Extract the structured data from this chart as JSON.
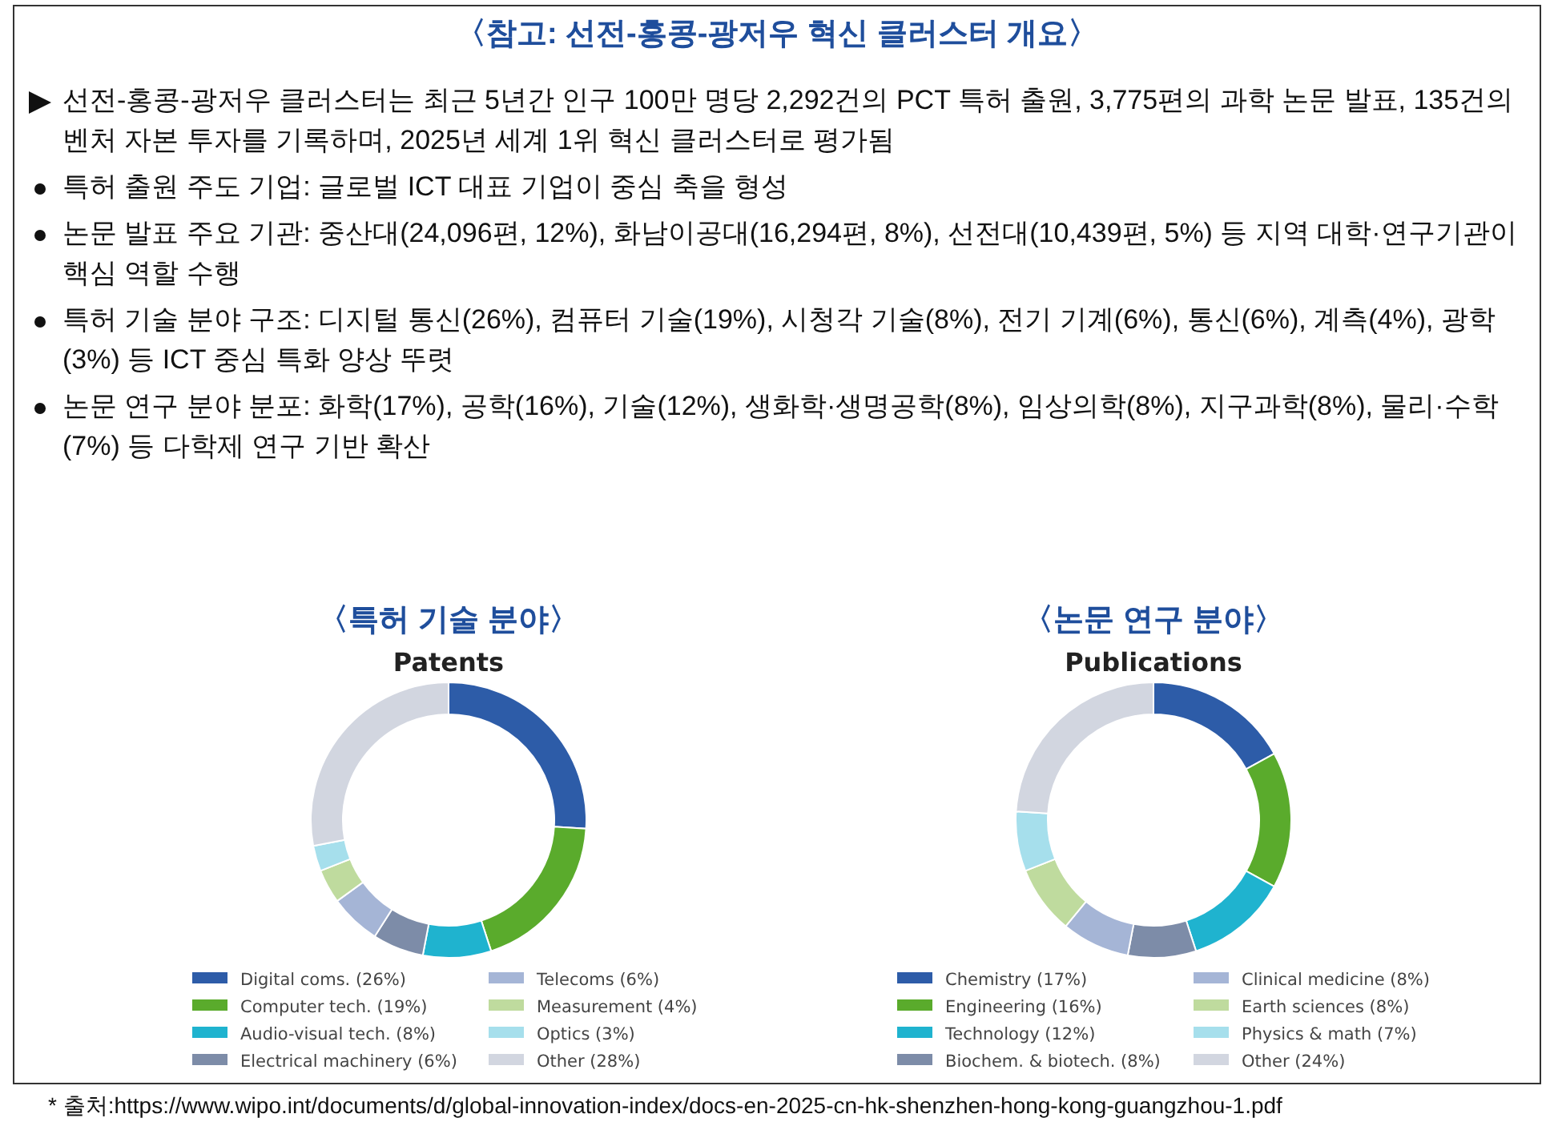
{
  "chart_data": [
    {
      "type": "other",
      "title": "〈참고: 선전-홍콩-광저우 혁신 클러스터 개요〉",
      "annotations": [
        "선전-홍콩-광저우 클러스터는 최근 5년간 인구 100만 명당 2,292건의 PCT 특허 출원, 3,775편의 과학 논문 발표, 135건의 벤처 자본 투자를 기록하며, 2025년 세계 1위 혁신 클러스터로 평가됨",
        "특허 출원 주도 기업: 글로벌 ICT 대표 기업이 중심 축을 형성",
        "논문 발표 주요 기관: 중산대(24,096편, 12%), 화남이공대(16,294편, 8%), 선전대(10,439편, 5%) 등 지역 대학·연구기관이 핵심 역할 수행",
        "특허 기술 분야 구조: 디지털 통신(26%), 컴퓨터 기술(19%), 시청각 기술(8%), 전기 기계(6%), 통신(6%), 계측(4%), 광학(3%) 등 ICT 중심 특화 양상 뚜렷",
        "논문 연구 분야 분포: 화학(17%), 공학(16%), 기술(12%), 생화학·생명공학(8%), 임상의학(8%), 지구과학(8%), 물리·수학(7%) 등 다학제 연구 기반 확산",
        "* 출처:https://www.wipo.int/documents/d/global-innovation-index/docs-en-2025-cn-hk-shenzhen-hong-kong-guangzhou-1.pdf"
      ]
    },
    {
      "type": "donut",
      "title": "〈특허 기술 분야〉",
      "subtitle": "Patents",
      "legend": "bottom",
      "categories": [
        "Digital coms. (26%)",
        "Computer tech. (19%)",
        "Audio-visual tech. (8%)",
        "Electrical machinery (6%)",
        "Telecoms (6%)",
        "Measurement (4%)",
        "Optics (3%)",
        "Other (28%)"
      ],
      "values": [
        26,
        19,
        8,
        6,
        6,
        4,
        3,
        28
      ],
      "colors": [
        "#2d5ca8",
        "#5aab2c",
        "#1fb3cf",
        "#7d8ca8",
        "#a5b5d6",
        "#bfdb9e",
        "#a6dfec",
        "#d2d6e0"
      ]
    },
    {
      "type": "donut",
      "title": "〈논문 연구 분야〉",
      "subtitle": "Publications",
      "legend": "bottom",
      "categories": [
        "Chemistry (17%)",
        "Engineering (16%)",
        "Technology (12%)",
        "Biochem. & biotech. (8%)",
        "Clinical medicine (8%)",
        "Earth sciences (8%)",
        "Physics & math (7%)",
        "Other (24%)"
      ],
      "values": [
        17,
        16,
        12,
        8,
        8,
        8,
        7,
        24
      ],
      "colors": [
        "#2d5ca8",
        "#5aab2c",
        "#1fb3cf",
        "#7d8ca8",
        "#a5b5d6",
        "#bfdb9e",
        "#a6dfec",
        "#d2d6e0"
      ]
    }
  ]
}
